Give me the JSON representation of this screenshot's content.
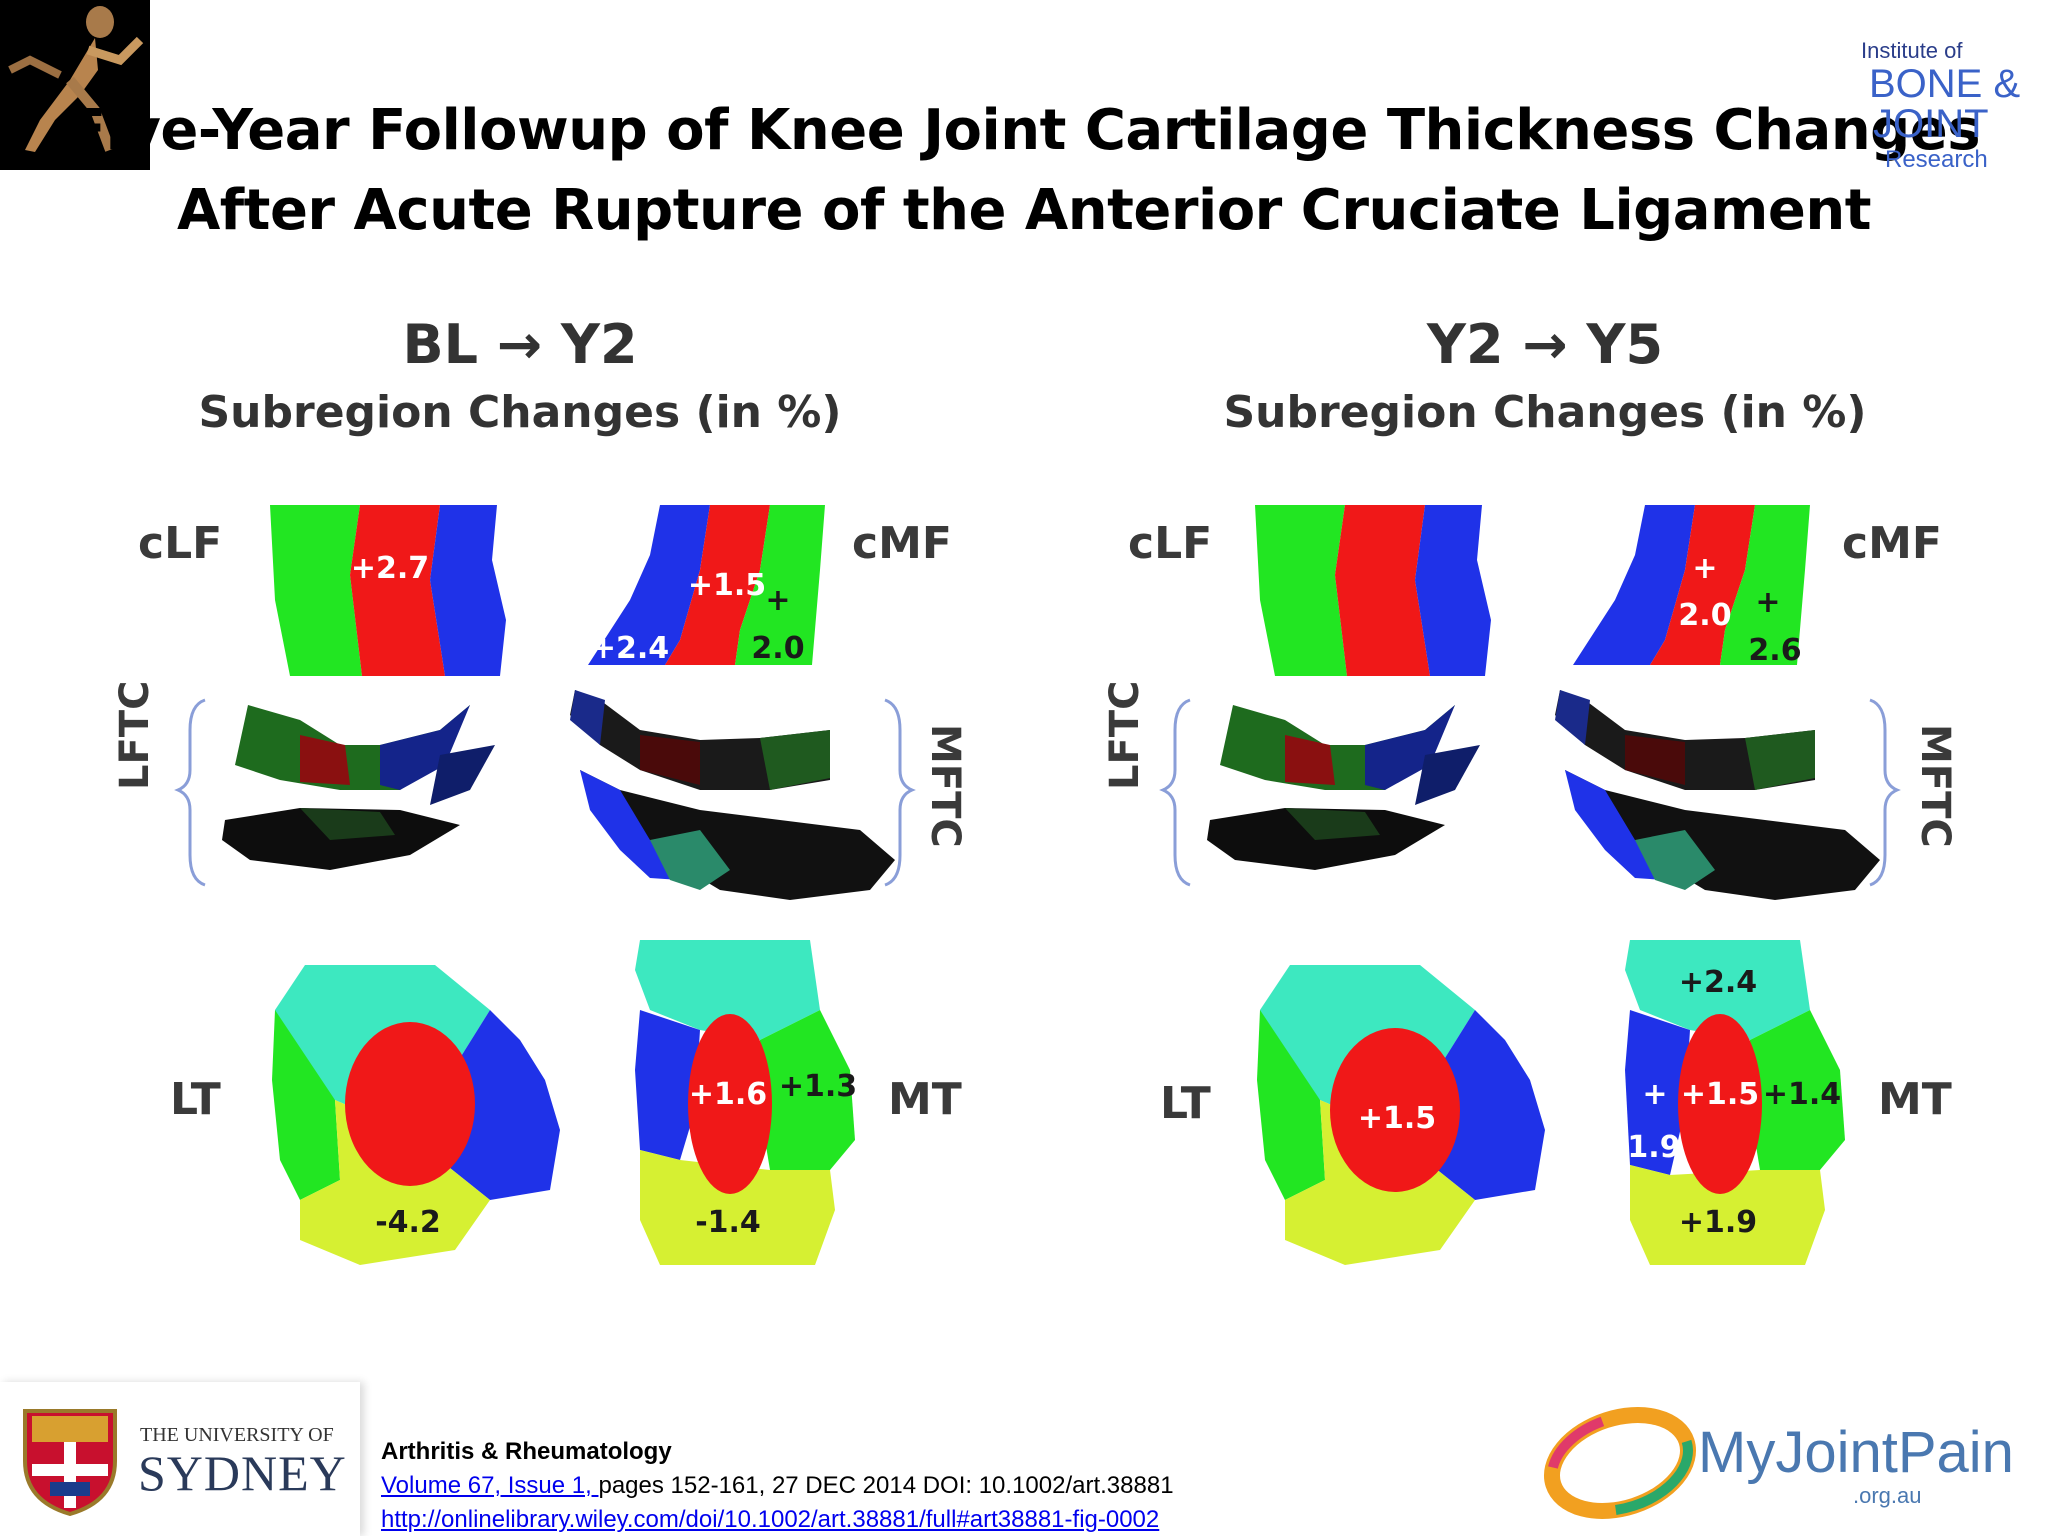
{
  "title_line1": "Five-Year Followup of Knee Joint Cartilage Thickness Changes",
  "title_line2": "After Acute Rupture of the Anterior Cruciate Ligament",
  "ibjr_logo": {
    "line1": "Institute of",
    "line2": "BONE &",
    "line3": "JOINT",
    "line4": "Research"
  },
  "panels": [
    {
      "header": "BL → Y2",
      "subheader": "Subregion Changes (in %)",
      "labels": {
        "clf": "cLF",
        "cmf": "cMF",
        "lftc": "LFTC",
        "mftc": "MFTC",
        "lt": "LT",
        "mt": "MT"
      },
      "values": {
        "clf_mid": "+2.7",
        "cmf_mid": "+1.5",
        "cmf_plus": "+",
        "cmf_left": "+2.4",
        "cmf_right": "2.0",
        "mt_center": "+1.6",
        "mt_right": "+1.3",
        "lt_bottom": "-4.2",
        "mt_bottom": "-1.4"
      }
    },
    {
      "header": "Y2 → Y5",
      "subheader": "Subregion Changes (in %)",
      "labels": {
        "clf": "cLF",
        "cmf": "cMF",
        "lftc": "LFTC",
        "mftc": "MFTC",
        "lt": "LT",
        "mt": "MT"
      },
      "values": {
        "cmf_plus1": "+",
        "cmf_mid": "2.0",
        "cmf_plus2": "+",
        "cmf_right": "2.6",
        "mt_top": "+2.4",
        "lt_center": "+1.5",
        "mt_plus": "+",
        "mt_left": "1.9",
        "mt_center": "+1.5",
        "mt_right": "+1.4",
        "mt_bottom": "+1.9"
      }
    }
  ],
  "colors": {
    "green": "#22e622",
    "red": "#f01818",
    "blue": "#1f32e8",
    "cyan": "#3de8c0",
    "yellow": "#d6f032",
    "bracket": "#8a9ed8"
  },
  "footer": {
    "university_small": "THE UNIVERSITY OF",
    "university_big": "SYDNEY",
    "journal": "Arthritis & Rheumatology",
    "volume_link": "Volume 67, Issue 1, ",
    "citation": "pages 152-161, 27 DEC 2014 DOI: 10.1002/art.38881",
    "url": "http://onlinelibrary.wiley.com/doi/10.1002/art.38881/full#art38881-fig-0002",
    "myjointpain": "MyJointPain",
    "myjointpain_sub": ".org.au"
  }
}
